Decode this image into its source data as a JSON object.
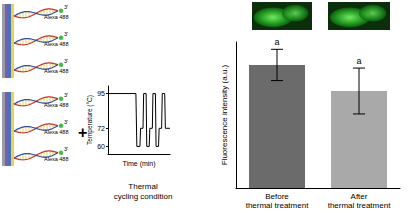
{
  "chart_data": [
    {
      "type": "line",
      "caption": "Thermal\ncycling condition",
      "x_label": "Time (min)",
      "y_label": "Temperature (°C)",
      "x": [
        0,
        9,
        9.3,
        10.3,
        10.5,
        11.3,
        11.5,
        12.3,
        12.5,
        13.3,
        13.5,
        14.3,
        14.5,
        15.3,
        15.5,
        16.3,
        16.5,
        17.3,
        17.5,
        18.3,
        18.5,
        20
      ],
      "values": [
        95,
        95,
        60,
        60,
        72,
        72,
        95,
        95,
        60,
        60,
        72,
        72,
        95,
        95,
        60,
        60,
        72,
        72,
        95,
        95,
        72,
        72
      ],
      "color": "#000000",
      "xlim": [
        0,
        20
      ],
      "ylim": [
        55,
        100
      ],
      "yticks": [
        60,
        72,
        95
      ],
      "tick_labels": "y",
      "grid": false
    },
    {
      "type": "bar",
      "y_label": "Fluorescence intensity (a.u.)",
      "categories": [
        "Before\nthermal treatment",
        "After\nthermal treatment"
      ],
      "values": [
        118,
        93
      ],
      "errors": [
        15,
        22
      ],
      "group_labels": [
        "a",
        "a"
      ],
      "colors": [
        "#6b6b6b",
        "#a9a9a9"
      ],
      "ylim": [
        0,
        140
      ],
      "tick_labels": false,
      "grid": false
    }
  ],
  "diagram": {
    "operator": "+",
    "groups": [
      {
        "strands": [
          {
            "label": "Alexa 488",
            "end": "3'"
          },
          {
            "label": "Alexa 488",
            "end": "3'"
          },
          {
            "label": "Alexa 488",
            "end": "3'"
          }
        ]
      },
      {
        "strands": [
          {
            "label": "Alexa 488",
            "end": "3'"
          },
          {
            "label": "Alexa 488",
            "end": "3'"
          },
          {
            "label": "Alexa 488",
            "end": "3'"
          }
        ]
      }
    ]
  }
}
